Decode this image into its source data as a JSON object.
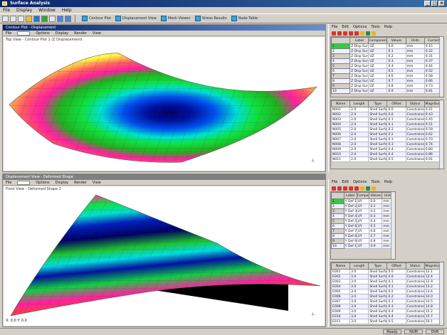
{
  "window": {
    "title": "Surface Analysis"
  },
  "menu": [
    "File",
    "Display",
    "Window",
    "Help"
  ],
  "toolbar": {
    "windows": [
      {
        "label": "Contour Plot"
      },
      {
        "label": "Displacement View"
      },
      {
        "label": "Mesh Viewer"
      },
      {
        "label": "Stress Results"
      },
      {
        "label": "Node Table"
      }
    ]
  },
  "top_view": {
    "title": "Contour Plot - Displacement",
    "toolbar": [
      "File",
      "Options",
      "Display",
      "Render",
      "View"
    ],
    "label": "Top View - Contour Plot 1 (Z Displacement)",
    "axis_icon": "axis-triad-icon",
    "colors": {
      "low": "#0010a0",
      "mid": "#00e0b0",
      "high": "#ff3080",
      "peak": "#ffff40"
    }
  },
  "bottom_view": {
    "title": "Displacement View - Deformed Shape",
    "toolbar": [
      "File",
      "Options",
      "Display",
      "Render",
      "View"
    ],
    "label": "Front View - Deformed Shape 2",
    "status": "X: 0.0 Y: 0.0",
    "axis_icon": "axis-triad-icon"
  },
  "top_panel": {
    "menu": [
      "File",
      "Edit",
      "Options",
      "Tools",
      "Help"
    ],
    "table1": {
      "headers": [
        "",
        "Label",
        "Component",
        "Values",
        "Units",
        "Current"
      ],
      "rows": [
        [
          "1",
          "Z Disp Surf 1",
          "UZ",
          "0.0",
          "mm",
          "0.15"
        ],
        [
          "2",
          "Z Disp Surf 2",
          "UZ",
          "0.1",
          "mm",
          "0.22"
        ],
        [
          "3",
          "Z Disp Surf 3",
          "UZ",
          "0.2",
          "mm",
          "0.31"
        ],
        [
          "4",
          "Z Disp Surf 4",
          "UZ",
          "0.3",
          "mm",
          "0.37"
        ],
        [
          "5",
          "Z Disp Surf 5",
          "UZ",
          "0.4",
          "mm",
          "0.44"
        ],
        [
          "6",
          "Z Disp Surf 6",
          "UZ",
          "0.5",
          "mm",
          "0.52"
        ],
        [
          "7",
          "Z Disp Surf 7",
          "UZ",
          "0.6",
          "mm",
          "0.58"
        ],
        [
          "8",
          "Z Disp Surf 8",
          "UZ",
          "0.7",
          "mm",
          "0.66"
        ],
        [
          "9",
          "Z Disp Surf 9",
          "UZ",
          "0.8",
          "mm",
          "0.73"
        ],
        [
          "10",
          "Z Disp Surf 10",
          "UZ",
          "0.9",
          "mm",
          "0.81"
        ]
      ]
    },
    "table2": {
      "headers": [
        "Name",
        "Length",
        "Type",
        "Offset",
        "Status",
        "Magnitude"
      ],
      "rows": [
        [
          "N001",
          "2.0",
          "Shell Surface",
          "0.0",
          "Constrained",
          "0.41"
        ],
        [
          "N002",
          "2.0",
          "Shell Surface",
          "0.0",
          "Constrained",
          "0.43"
        ],
        [
          "N003",
          "2.0",
          "Shell Surface",
          "0.1",
          "Constrained",
          "0.45"
        ],
        [
          "N004",
          "2.0",
          "Shell Surface",
          "0.1",
          "Constrained",
          "0.51"
        ],
        [
          "N005",
          "2.0",
          "Shell Surface",
          "0.2",
          "Constrained",
          "0.59"
        ],
        [
          "N006",
          "2.0",
          "Shell Surface",
          "0.2",
          "Constrained",
          "0.62"
        ],
        [
          "N007",
          "2.0",
          "Shell Surface",
          "0.3",
          "Constrained",
          "0.70"
        ],
        [
          "N008",
          "2.0",
          "Shell Surface",
          "0.3",
          "Constrained",
          "0.74"
        ],
        [
          "N009",
          "2.0",
          "Shell Surface",
          "0.4",
          "Constrained",
          "0.80"
        ],
        [
          "N010",
          "2.0",
          "Shell Surface",
          "0.4",
          "Constrained",
          "0.86"
        ],
        [
          "N011",
          "2.0",
          "Shell Surface",
          "0.5",
          "Constrained",
          "0.91"
        ]
      ]
    }
  },
  "bottom_panel": {
    "menu": [
      "File",
      "Edit",
      "Options",
      "Tools",
      "Help"
    ],
    "table1": {
      "headers": [
        "",
        "Label",
        "Component",
        "Values",
        "Units"
      ],
      "rows": [
        [
          "1",
          "Y Def 1",
          "UY",
          "0.0",
          "mm"
        ],
        [
          "2",
          "Y Def 2",
          "UY",
          "0.1",
          "mm"
        ],
        [
          "3",
          "Y Def 3",
          "UY",
          "0.2",
          "mm"
        ],
        [
          "4",
          "Y Def 4",
          "UY",
          "0.3",
          "mm"
        ],
        [
          "5",
          "Y Def 5",
          "UY",
          "0.4",
          "mm"
        ],
        [
          "6",
          "Y Def 6",
          "UY",
          "0.5",
          "mm"
        ],
        [
          "7",
          "Y Def 7",
          "UY",
          "0.6",
          "mm"
        ],
        [
          "8",
          "Y Def 8",
          "UY",
          "0.7",
          "mm"
        ],
        [
          "9",
          "Y Def 9",
          "UY",
          "0.8",
          "mm"
        ],
        [
          "10",
          "Y Def 10",
          "UY",
          "0.9",
          "mm"
        ]
      ]
    },
    "table2": {
      "headers": [
        "Name",
        "Length",
        "Type",
        "Offset",
        "Status",
        "Magnitude"
      ],
      "rows": [
        [
          "E001",
          "3.0",
          "Shell Surface",
          "0.0",
          "Constrained",
          "12.1"
        ],
        [
          "E002",
          "3.0",
          "Shell Surface",
          "0.0",
          "Constrained",
          "12.4"
        ],
        [
          "E003",
          "3.0",
          "Shell Surface",
          "0.1",
          "Constrained",
          "12.9"
        ],
        [
          "E004",
          "3.0",
          "Shell Surface",
          "0.1",
          "Constrained",
          "13.2"
        ],
        [
          "E005",
          "3.0",
          "Shell Surface",
          "0.2",
          "Constrained",
          "13.6"
        ],
        [
          "E006",
          "3.0",
          "Shell Surface",
          "0.2",
          "Constrained",
          "14.0"
        ],
        [
          "E007",
          "3.0",
          "Shell Surface",
          "0.3",
          "Constrained",
          "14.5"
        ],
        [
          "E008",
          "3.0",
          "Shell Surface",
          "0.3",
          "Constrained",
          "14.8"
        ],
        [
          "E009",
          "3.0",
          "Shell Surface",
          "0.4",
          "Constrained",
          "15.2"
        ],
        [
          "E010",
          "3.0",
          "Shell Surface",
          "0.4",
          "Constrained",
          "15.7"
        ],
        [
          "E011",
          "3.0",
          "Shell Surface",
          "0.5",
          "Constrained",
          "16.1"
        ]
      ]
    }
  },
  "status": [
    "Ready",
    "NUM",
    "OVR"
  ]
}
